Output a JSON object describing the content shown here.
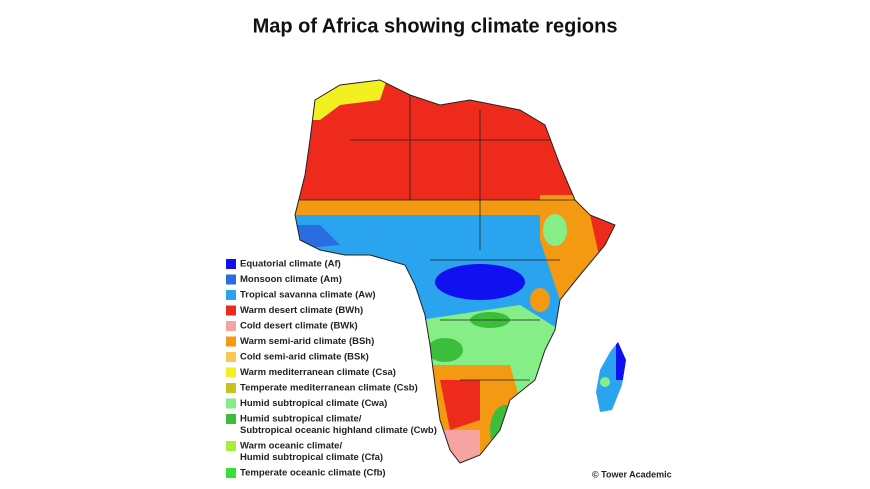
{
  "title": "Map of Africa showing climate regions",
  "legend": [
    {
      "lines": [
        "Equatorial climate (Af)"
      ],
      "color": "#1010f0"
    },
    {
      "lines": [
        "Monsoon climate (Am)"
      ],
      "color": "#2a6de0"
    },
    {
      "lines": [
        "Tropical savanna climate (Aw)"
      ],
      "color": "#2aa4ee"
    },
    {
      "lines": [
        "Warm desert climate (BWh)"
      ],
      "color": "#ee2a1c"
    },
    {
      "lines": [
        "Cold desert climate (BWk)"
      ],
      "color": "#f5a3a3"
    },
    {
      "lines": [
        "Warm semi-arid climate (BSh)"
      ],
      "color": "#f49a12"
    },
    {
      "lines": [
        "Cold semi-arid climate (BSk)"
      ],
      "color": "#f8c858"
    },
    {
      "lines": [
        "Warm mediterranean climate (Csa)"
      ],
      "color": "#f2f020"
    },
    {
      "lines": [
        "Temperate mediterranean climate (Csb)"
      ],
      "color": "#c4c420"
    },
    {
      "lines": [
        "Humid subtropical climate (Cwa)"
      ],
      "color": "#86ee86"
    },
    {
      "lines": [
        "Humid subtropical climate/",
        "Subtropical oceanic highland climate (Cwb)"
      ],
      "color": "#3cbe3c"
    },
    {
      "lines": [
        "Warm oceanic climate/",
        "Humid subtropical climate (Cfa)"
      ],
      "color": "#a6ee3c"
    },
    {
      "lines": [
        "Temperate oceanic climate (Cfb)"
      ],
      "color": "#36e036"
    }
  ],
  "credit": "© Tower Academic"
}
